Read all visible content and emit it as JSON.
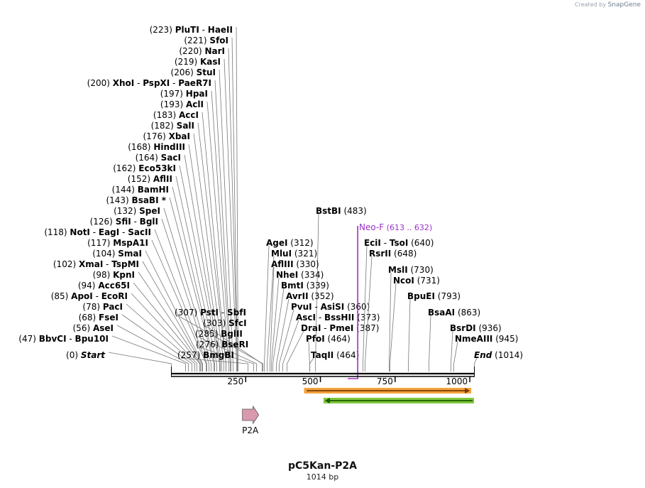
{
  "credit": {
    "prefix": "Created by",
    "brand": "SnapGene"
  },
  "plasmid": {
    "name": "pC5Kan-P2A",
    "length": "1014 bp"
  },
  "ruler": {
    "start": 0,
    "end": 1014,
    "ticks": [
      "250",
      "500",
      "750",
      "1000"
    ]
  },
  "sites": [
    {
      "pos": "(223)",
      "names": [
        "PluTI",
        "HaeII"
      ],
      "loc": 223
    },
    {
      "pos": "(221)",
      "names": [
        "SfoI"
      ],
      "loc": 221
    },
    {
      "pos": "(220)",
      "names": [
        "NarI"
      ],
      "loc": 220
    },
    {
      "pos": "(219)",
      "names": [
        "KasI"
      ],
      "loc": 219
    },
    {
      "pos": "(206)",
      "names": [
        "StuI"
      ],
      "loc": 206
    },
    {
      "pos": "(200)",
      "names": [
        "XhoI",
        "PspXI",
        "PaeR7I"
      ],
      "loc": 200
    },
    {
      "pos": "(197)",
      "names": [
        "HpaI"
      ],
      "loc": 197
    },
    {
      "pos": "(193)",
      "names": [
        "AclI"
      ],
      "loc": 193
    },
    {
      "pos": "(183)",
      "names": [
        "AccI"
      ],
      "loc": 183
    },
    {
      "pos": "(182)",
      "names": [
        "SalI"
      ],
      "loc": 182
    },
    {
      "pos": "(176)",
      "names": [
        "XbaI"
      ],
      "loc": 176
    },
    {
      "pos": "(168)",
      "names": [
        "HindIII"
      ],
      "loc": 168
    },
    {
      "pos": "(164)",
      "names": [
        "SacI"
      ],
      "loc": 164
    },
    {
      "pos": "(162)",
      "names": [
        "Eco53kI"
      ],
      "loc": 162
    },
    {
      "pos": "(152)",
      "names": [
        "AflII"
      ],
      "loc": 152
    },
    {
      "pos": "(144)",
      "names": [
        "BamHI"
      ],
      "loc": 144
    },
    {
      "pos": "(143)",
      "names": [
        "BsaBI *"
      ],
      "loc": 143
    },
    {
      "pos": "(132)",
      "names": [
        "SpeI"
      ],
      "loc": 132
    },
    {
      "pos": "(126)",
      "names": [
        "SfiI",
        "BglI"
      ],
      "loc": 126
    },
    {
      "pos": "(118)",
      "names": [
        "NotI",
        "EagI",
        "SacII"
      ],
      "loc": 118
    },
    {
      "pos": "(117)",
      "names": [
        "MspA1I"
      ],
      "loc": 117
    },
    {
      "pos": "(104)",
      "names": [
        "SmaI"
      ],
      "loc": 104
    },
    {
      "pos": "(102)",
      "names": [
        "XmaI",
        "TspMI"
      ],
      "loc": 102
    },
    {
      "pos": "(98)",
      "names": [
        "KpnI"
      ],
      "loc": 98
    },
    {
      "pos": "(94)",
      "names": [
        "Acc65I"
      ],
      "loc": 94
    },
    {
      "pos": "(85)",
      "names": [
        "ApoI",
        "EcoRI"
      ],
      "loc": 85
    },
    {
      "pos": "(78)",
      "names": [
        "PacI"
      ],
      "loc": 78
    },
    {
      "pos": "(68)",
      "names": [
        "FseI"
      ],
      "loc": 68
    },
    {
      "pos": "(56)",
      "names": [
        "AseI"
      ],
      "loc": 56
    },
    {
      "pos": "(47)",
      "names": [
        "BbvCI",
        "Bpu10I"
      ],
      "loc": 47
    },
    {
      "pos": "(0)",
      "names": [
        "Start"
      ],
      "loc": 0,
      "italic": true
    },
    {
      "pos": "(307)",
      "names": [
        "PstI",
        "SbfI"
      ],
      "loc": 307,
      "pos_first": true
    },
    {
      "pos": "(303)",
      "names": [
        "SfcI"
      ],
      "loc": 303,
      "pos_first": true
    },
    {
      "pos": "(285)",
      "names": [
        "BglII"
      ],
      "loc": 285,
      "pos_first": true
    },
    {
      "pos": "(276)",
      "names": [
        "BseRI"
      ],
      "loc": 276,
      "pos_first": true
    },
    {
      "pos": "(257)",
      "names": [
        "BmgBI"
      ],
      "loc": 257,
      "pos_first": true
    },
    {
      "pos": "(483)",
      "names": [
        "BstBI"
      ],
      "loc": 483
    },
    {
      "pos": "(312)",
      "names": [
        "AgeI"
      ],
      "loc": 312
    },
    {
      "pos": "(321)",
      "names": [
        "MluI"
      ],
      "loc": 321
    },
    {
      "pos": "(330)",
      "names": [
        "AflIII"
      ],
      "loc": 330
    },
    {
      "pos": "(334)",
      "names": [
        "NheI"
      ],
      "loc": 334
    },
    {
      "pos": "(339)",
      "names": [
        "BmtI"
      ],
      "loc": 339
    },
    {
      "pos": "(352)",
      "names": [
        "AvrII"
      ],
      "loc": 352
    },
    {
      "pos": "(360)",
      "names": [
        "PvuI",
        "AsiSI"
      ],
      "loc": 360
    },
    {
      "pos": "(373)",
      "names": [
        "AscI",
        "BssHII"
      ],
      "loc": 373
    },
    {
      "pos": "(387)",
      "names": [
        "DraI",
        "PmeI"
      ],
      "loc": 387
    },
    {
      "pos": "(464)",
      "names": [
        "PfoI"
      ],
      "loc": 464
    },
    {
      "pos": "(464)",
      "names": [
        "TaqII"
      ],
      "loc": 464
    },
    {
      "pos": "(640)",
      "names": [
        "EciI",
        "TsoI"
      ],
      "loc": 640
    },
    {
      "pos": "(648)",
      "names": [
        "RsrII"
      ],
      "loc": 648
    },
    {
      "pos": "(730)",
      "names": [
        "MslI"
      ],
      "loc": 730
    },
    {
      "pos": "(731)",
      "names": [
        "NcoI"
      ],
      "loc": 731
    },
    {
      "pos": "(793)",
      "names": [
        "BpuEI"
      ],
      "loc": 793
    },
    {
      "pos": "(863)",
      "names": [
        "BsaAI"
      ],
      "loc": 863
    },
    {
      "pos": "(936)",
      "names": [
        "BsrDI"
      ],
      "loc": 936
    },
    {
      "pos": "(945)",
      "names": [
        "NmeAIII"
      ],
      "loc": 945
    },
    {
      "pos": "(1014)",
      "names": [
        "End"
      ],
      "loc": 1014,
      "italic": true
    }
  ],
  "primer": {
    "name": "Neo-F",
    "range": "(613 .. 632)",
    "start": 613,
    "end": 632,
    "color": "#9b30c8"
  },
  "features": [
    {
      "name": "P2A",
      "start": 220,
      "end": 277,
      "color": "#d99aad",
      "strand": "forward"
    },
    {
      "name": "",
      "start": 450,
      "end": 1000,
      "color": "#f3a23c",
      "strand": "forward"
    },
    {
      "name": "",
      "start": 515,
      "end": 1014,
      "color": "#7ec83c",
      "strand": "reverse"
    }
  ]
}
